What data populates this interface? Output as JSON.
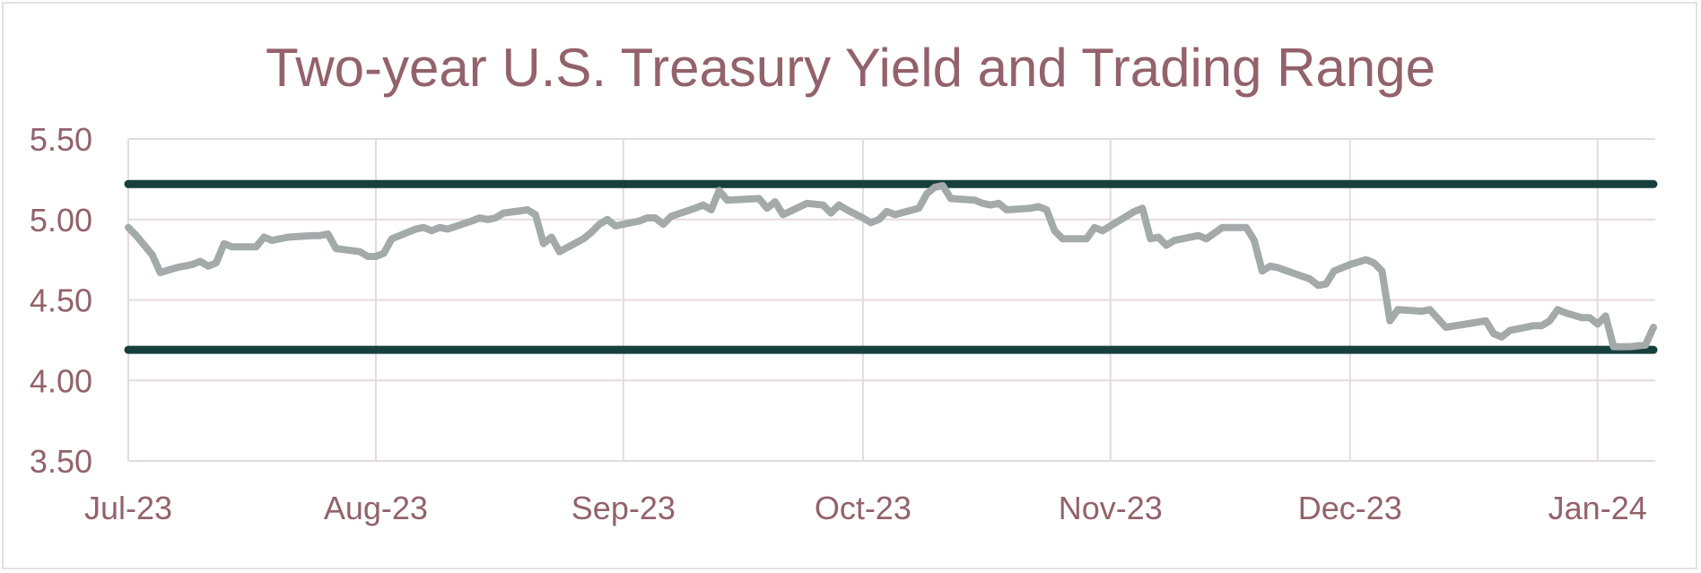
{
  "chart_data": {
    "type": "line",
    "title": "Two-year U.S. Treasury Yield and Trading Range",
    "xlabel": "",
    "ylabel": "",
    "x_range": [
      "2023-07-01",
      "2024-01-08"
    ],
    "ylim": [
      3.5,
      5.5
    ],
    "y_ticks": [
      "3.50",
      "4.00",
      "4.50",
      "5.00",
      "5.50"
    ],
    "x_ticks": [
      {
        "label": "Jul-23",
        "date": "2023-07-01"
      },
      {
        "label": "Aug-23",
        "date": "2023-08-01"
      },
      {
        "label": "Sep-23",
        "date": "2023-09-01"
      },
      {
        "label": "Oct-23",
        "date": "2023-10-01"
      },
      {
        "label": "Nov-23",
        "date": "2023-11-01"
      },
      {
        "label": "Dec-23",
        "date": "2023-12-01"
      },
      {
        "label": "Jan-24",
        "date": "2024-01-01"
      }
    ],
    "grid": true,
    "legend": "none",
    "series": [
      {
        "color": "#a3aaa9",
        "points": [
          [
            "2023-07-01",
            4.95
          ],
          [
            "2023-07-02",
            4.9
          ],
          [
            "2023-07-04",
            4.78
          ],
          [
            "2023-07-05",
            4.67
          ],
          [
            "2023-07-07",
            4.7
          ],
          [
            "2023-07-09",
            4.72
          ],
          [
            "2023-07-10",
            4.74
          ],
          [
            "2023-07-11",
            4.71
          ],
          [
            "2023-07-12",
            4.73
          ],
          [
            "2023-07-13",
            4.85
          ],
          [
            "2023-07-14",
            4.83
          ],
          [
            "2023-07-17",
            4.83
          ],
          [
            "2023-07-18",
            4.89
          ],
          [
            "2023-07-19",
            4.87
          ],
          [
            "2023-07-21",
            4.89
          ],
          [
            "2023-07-24",
            4.9
          ],
          [
            "2023-07-25",
            4.9
          ],
          [
            "2023-07-26",
            4.91
          ],
          [
            "2023-07-27",
            4.82
          ],
          [
            "2023-07-30",
            4.8
          ],
          [
            "2023-07-31",
            4.77
          ],
          [
            "2023-08-01",
            4.77
          ],
          [
            "2023-08-02",
            4.79
          ],
          [
            "2023-08-03",
            4.88
          ],
          [
            "2023-08-04",
            4.9
          ],
          [
            "2023-08-06",
            4.94
          ],
          [
            "2023-08-07",
            4.95
          ],
          [
            "2023-08-08",
            4.93
          ],
          [
            "2023-08-09",
            4.95
          ],
          [
            "2023-08-10",
            4.94
          ],
          [
            "2023-08-13",
            4.99
          ],
          [
            "2023-08-14",
            5.01
          ],
          [
            "2023-08-15",
            5.0
          ],
          [
            "2023-08-16",
            5.01
          ],
          [
            "2023-08-17",
            5.04
          ],
          [
            "2023-08-20",
            5.06
          ],
          [
            "2023-08-21",
            5.03
          ],
          [
            "2023-08-22",
            4.85
          ],
          [
            "2023-08-23",
            4.89
          ],
          [
            "2023-08-24",
            4.8
          ],
          [
            "2023-08-27",
            4.88
          ],
          [
            "2023-08-28",
            4.92
          ],
          [
            "2023-08-29",
            4.97
          ],
          [
            "2023-08-30",
            5.0
          ],
          [
            "2023-08-31",
            4.96
          ],
          [
            "2023-09-03",
            4.99
          ],
          [
            "2023-09-04",
            5.01
          ],
          [
            "2023-09-05",
            5.01
          ],
          [
            "2023-09-06",
            4.97
          ],
          [
            "2023-09-07",
            5.02
          ],
          [
            "2023-09-10",
            5.07
          ],
          [
            "2023-09-11",
            5.09
          ],
          [
            "2023-09-12",
            5.06
          ],
          [
            "2023-09-13",
            5.18
          ],
          [
            "2023-09-14",
            5.12
          ],
          [
            "2023-09-18",
            5.13
          ],
          [
            "2023-09-19",
            5.07
          ],
          [
            "2023-09-20",
            5.11
          ],
          [
            "2023-09-21",
            5.03
          ],
          [
            "2023-09-24",
            5.1
          ],
          [
            "2023-09-26",
            5.09
          ],
          [
            "2023-09-27",
            5.04
          ],
          [
            "2023-09-28",
            5.09
          ],
          [
            "2023-09-29",
            5.06
          ],
          [
            "2023-10-01",
            5.01
          ],
          [
            "2023-10-02",
            4.98
          ],
          [
            "2023-10-03",
            5.0
          ],
          [
            "2023-10-04",
            5.05
          ],
          [
            "2023-10-05",
            5.03
          ],
          [
            "2023-10-08",
            5.07
          ],
          [
            "2023-10-09",
            5.16
          ],
          [
            "2023-10-10",
            5.2
          ],
          [
            "2023-10-11",
            5.21
          ],
          [
            "2023-10-12",
            5.13
          ],
          [
            "2023-10-15",
            5.12
          ],
          [
            "2023-10-16",
            5.1
          ],
          [
            "2023-10-17",
            5.09
          ],
          [
            "2023-10-18",
            5.1
          ],
          [
            "2023-10-19",
            5.06
          ],
          [
            "2023-10-22",
            5.07
          ],
          [
            "2023-10-23",
            5.08
          ],
          [
            "2023-10-24",
            5.06
          ],
          [
            "2023-10-25",
            4.93
          ],
          [
            "2023-10-26",
            4.88
          ],
          [
            "2023-10-29",
            4.88
          ],
          [
            "2023-10-30",
            4.95
          ],
          [
            "2023-10-31",
            4.93
          ],
          [
            "2023-11-01",
            4.96
          ],
          [
            "2023-11-02",
            4.99
          ],
          [
            "2023-11-03",
            5.02
          ],
          [
            "2023-11-04",
            5.05
          ],
          [
            "2023-11-05",
            5.07
          ],
          [
            "2023-11-06",
            4.88
          ],
          [
            "2023-11-07",
            4.89
          ],
          [
            "2023-11-08",
            4.84
          ],
          [
            "2023-11-09",
            4.87
          ],
          [
            "2023-11-12",
            4.9
          ],
          [
            "2023-11-13",
            4.88
          ],
          [
            "2023-11-15",
            4.95
          ],
          [
            "2023-11-18",
            4.95
          ],
          [
            "2023-11-19",
            4.87
          ],
          [
            "2023-11-20",
            4.68
          ],
          [
            "2023-11-21",
            4.71
          ],
          [
            "2023-11-22",
            4.7
          ],
          [
            "2023-11-26",
            4.63
          ],
          [
            "2023-11-27",
            4.59
          ],
          [
            "2023-11-28",
            4.6
          ],
          [
            "2023-11-29",
            4.68
          ],
          [
            "2023-12-01",
            4.72
          ],
          [
            "2023-12-03",
            4.75
          ],
          [
            "2023-12-04",
            4.73
          ],
          [
            "2023-12-05",
            4.68
          ],
          [
            "2023-12-06",
            4.37
          ],
          [
            "2023-12-07",
            4.44
          ],
          [
            "2023-12-10",
            4.43
          ],
          [
            "2023-12-11",
            4.44
          ],
          [
            "2023-12-13",
            4.33
          ],
          [
            "2023-12-18",
            4.37
          ],
          [
            "2023-12-19",
            4.29
          ],
          [
            "2023-12-20",
            4.27
          ],
          [
            "2023-12-21",
            4.31
          ],
          [
            "2023-12-24",
            4.34
          ],
          [
            "2023-12-25",
            4.34
          ],
          [
            "2023-12-26",
            4.37
          ],
          [
            "2023-12-27",
            4.44
          ],
          [
            "2023-12-28",
            4.42
          ],
          [
            "2023-12-30",
            4.39
          ],
          [
            "2023-12-31",
            4.39
          ],
          [
            "2024-01-01",
            4.35
          ],
          [
            "2024-01-02",
            4.4
          ],
          [
            "2024-01-03",
            4.21
          ],
          [
            "2024-01-05",
            4.21
          ],
          [
            "2024-01-07",
            4.22
          ],
          [
            "2024-01-08",
            4.33
          ]
        ]
      }
    ],
    "reference_lines": [
      {
        "y": 5.22,
        "color": "#17403d"
      },
      {
        "y": 4.19,
        "color": "#17403d"
      }
    ]
  }
}
